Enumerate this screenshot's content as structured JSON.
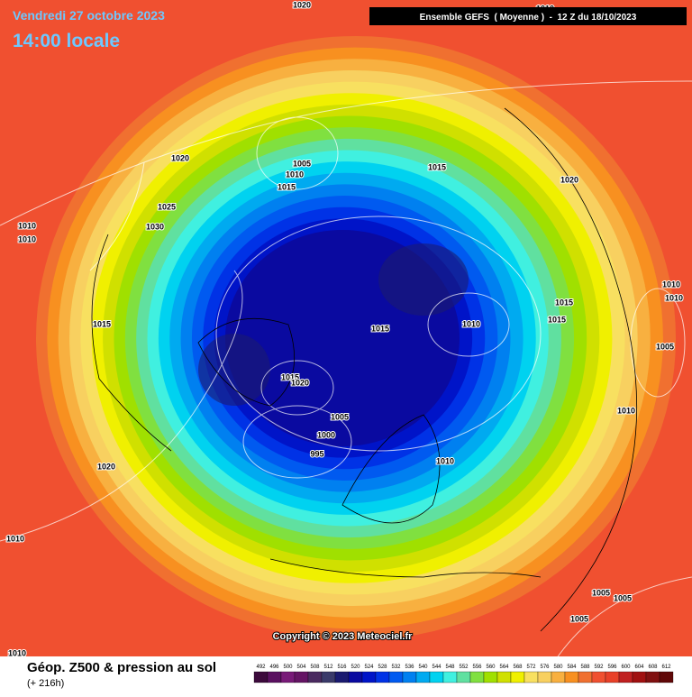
{
  "header": {
    "date": "Vendredi 27 octobre 2023",
    "time": "14:00 locale",
    "run": "Ensemble GEFS  ( Moyenne )  -  12 Z du 18/10/2023"
  },
  "map": {
    "pressure_labels": [
      1020,
      1010,
      1020,
      1005,
      1010,
      1015,
      1015,
      1020,
      1025,
      1030,
      1010,
      1010,
      1015,
      1015,
      1010,
      1010,
      1015,
      1015,
      1010,
      1005,
      1015,
      1020,
      1005,
      1000,
      995,
      1010,
      1010,
      1020,
      1010,
      1005,
      1005,
      1005,
      1010
    ]
  },
  "footer": {
    "copyright": "Copyright © 2023 Meteociel.fr",
    "title": "Géop. Z500 & pression au sol",
    "subtitle": "(+ 216h)"
  },
  "legend": {
    "values": [
      492,
      496,
      500,
      504,
      508,
      512,
      516,
      520,
      524,
      528,
      532,
      536,
      540,
      544,
      548,
      552,
      556,
      560,
      564,
      568,
      572,
      576,
      580,
      584,
      588,
      592,
      596,
      600,
      604,
      608,
      612
    ],
    "colors": [
      "#3c0a3c",
      "#5a1060",
      "#781a78",
      "#641464",
      "#4a2a60",
      "#3a3a6a",
      "#1a1a70",
      "#0a0aa0",
      "#0014c8",
      "#0032e6",
      "#005af0",
      "#0080f0",
      "#00aaf0",
      "#00d2f0",
      "#40f0e0",
      "#60e0a0",
      "#80e040",
      "#a0e000",
      "#d0e000",
      "#f0f000",
      "#f8e060",
      "#f8d060",
      "#f8b040",
      "#f89020",
      "#f07030",
      "#f05030",
      "#e84028",
      "#c02020",
      "#a01010",
      "#801010",
      "#600808"
    ]
  }
}
